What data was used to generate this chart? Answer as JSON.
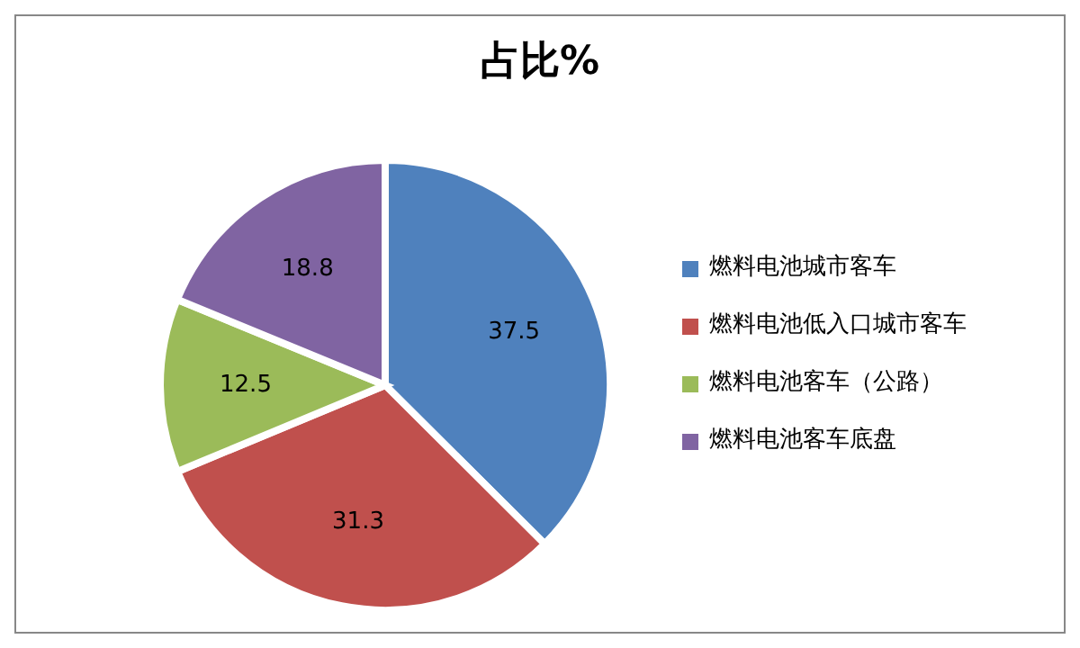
{
  "chart_data": {
    "type": "pie",
    "title": "占比%",
    "categories": [
      "燃料电池城市客车",
      "燃料电池低入口城市客车",
      "燃料电池客车（公路）",
      "燃料电池客车底盘"
    ],
    "values": [
      37.5,
      31.3,
      12.5,
      18.8
    ],
    "colors": [
      "#4f81bd",
      "#c0504d",
      "#9bbb59",
      "#8064a2"
    ],
    "data_labels": true,
    "legend": "right"
  }
}
